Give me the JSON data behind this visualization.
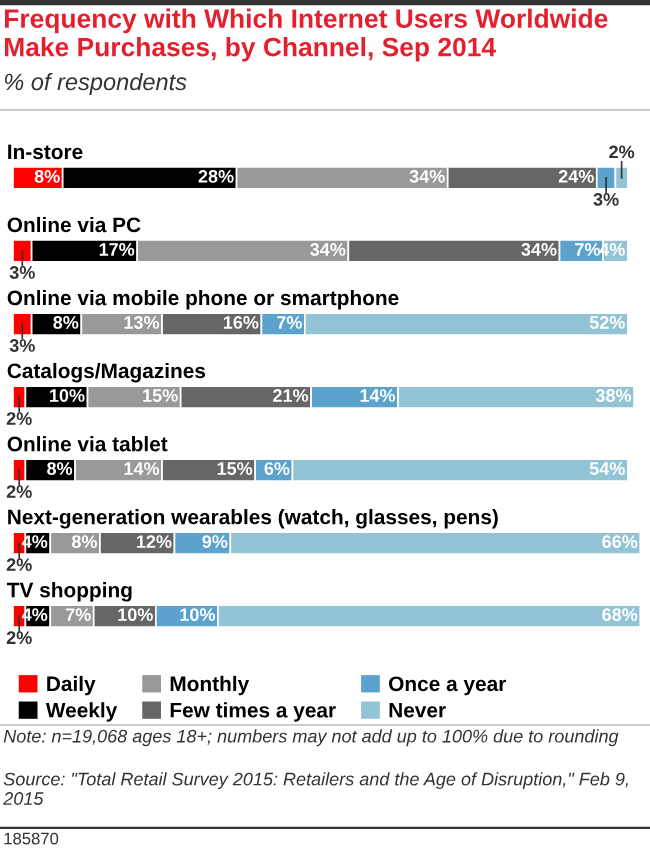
{
  "chart_data": {
    "type": "bar",
    "orientation": "horizontal",
    "stacked": true,
    "legend": "bottom",
    "title": "Frequency with Which Internet Users Worldwide Make Purchases, by Channel, Sep 2014",
    "subtitle": "% of respondents",
    "categories": [
      "In-store",
      "Online via PC",
      "Online via mobile phone or smartphone",
      "Catalogs/Magazines",
      "Online via tablet",
      "Next-generation wearables (watch, glasses, pens)",
      "TV shopping"
    ],
    "series": [
      {
        "name": "Daily",
        "color": "#ff0000",
        "values": [
          8,
          3,
          3,
          2,
          2,
          2,
          2
        ],
        "value_labels": [
          "8%",
          "3%",
          "3%",
          "2%",
          "2%",
          "2%",
          "2%"
        ]
      },
      {
        "name": "Weekly",
        "color": "#000000",
        "values": [
          28,
          17,
          8,
          10,
          8,
          4,
          4
        ],
        "value_labels": [
          "28%",
          "17%",
          "8%",
          "10%",
          "8%",
          "4%",
          "4%"
        ]
      },
      {
        "name": "Monthly",
        "color": "#999999",
        "values": [
          34,
          34,
          13,
          15,
          14,
          8,
          7
        ],
        "value_labels": [
          "34%",
          "34%",
          "13%",
          "15%",
          "14%",
          "8%",
          "7%"
        ]
      },
      {
        "name": "Few times a year",
        "color": "#666666",
        "values": [
          24,
          34,
          16,
          21,
          15,
          12,
          10
        ],
        "value_labels": [
          "24%",
          "34%",
          "16%",
          "21%",
          "15%",
          "12%",
          "10%"
        ]
      },
      {
        "name": "Once a year",
        "color": "#5ba3cc",
        "values": [
          3,
          7,
          7,
          14,
          6,
          9,
          10
        ],
        "value_labels": [
          "3%",
          "7%",
          "7%",
          "14%",
          "6%",
          "9%",
          "10%"
        ]
      },
      {
        "name": "Never",
        "color": "#93c4d6",
        "values": [
          2,
          4,
          52,
          38,
          54,
          66,
          68
        ],
        "value_labels": [
          "2%",
          "4%",
          "52%",
          "38%",
          "54%",
          "66%",
          "68%"
        ]
      }
    ],
    "annotations": [
      "Note: n=19,068 ages 18+; numbers may not add up to 100% due to rounding",
      "Source: \"Total Retail Survey 2015: Retailers and the Age of Disruption,\" Feb 9, 2015",
      "185870"
    ]
  }
}
